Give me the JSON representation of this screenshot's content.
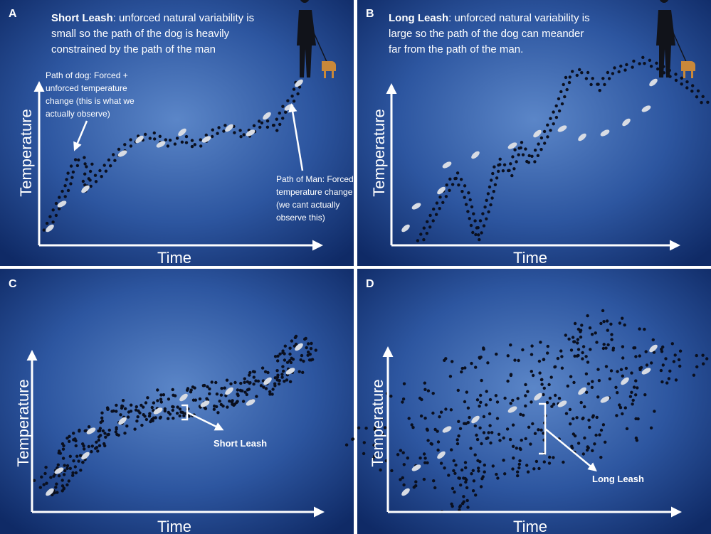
{
  "panels": [
    {
      "label": "A",
      "title": "Short Leash",
      "description_lines": [
        ": unforced natural variability is",
        "small so the path of the dog is heavily",
        "constrained by the path of the man"
      ],
      "annotations": [
        {
          "lines": [
            "Path of dog: Forced +",
            "unforced temperature",
            "change (this is what we",
            "actually observe)"
          ]
        },
        {
          "lines": [
            "Path of Man: Forced",
            "temperature change",
            "(we cant actually",
            "observe this)"
          ]
        }
      ],
      "y_axis_label": "Temperature",
      "x_axis_label": "Time"
    },
    {
      "label": "B",
      "title": "Long Leash",
      "description_lines": [
        ": unforced natural variability is",
        "large so the path of the dog can meander",
        "far from the path of the man."
      ],
      "y_axis_label": "Temperature",
      "x_axis_label": "Time"
    },
    {
      "label": "C",
      "annotations": [
        {
          "lines": [
            "Short Leash"
          ]
        }
      ],
      "y_axis_label": "Temperature",
      "x_axis_label": "Time"
    },
    {
      "label": "D",
      "annotations": [
        {
          "lines": [
            "Long Leash"
          ]
        }
      ],
      "y_axis_label": "Temperature",
      "x_axis_label": "Time"
    }
  ]
}
